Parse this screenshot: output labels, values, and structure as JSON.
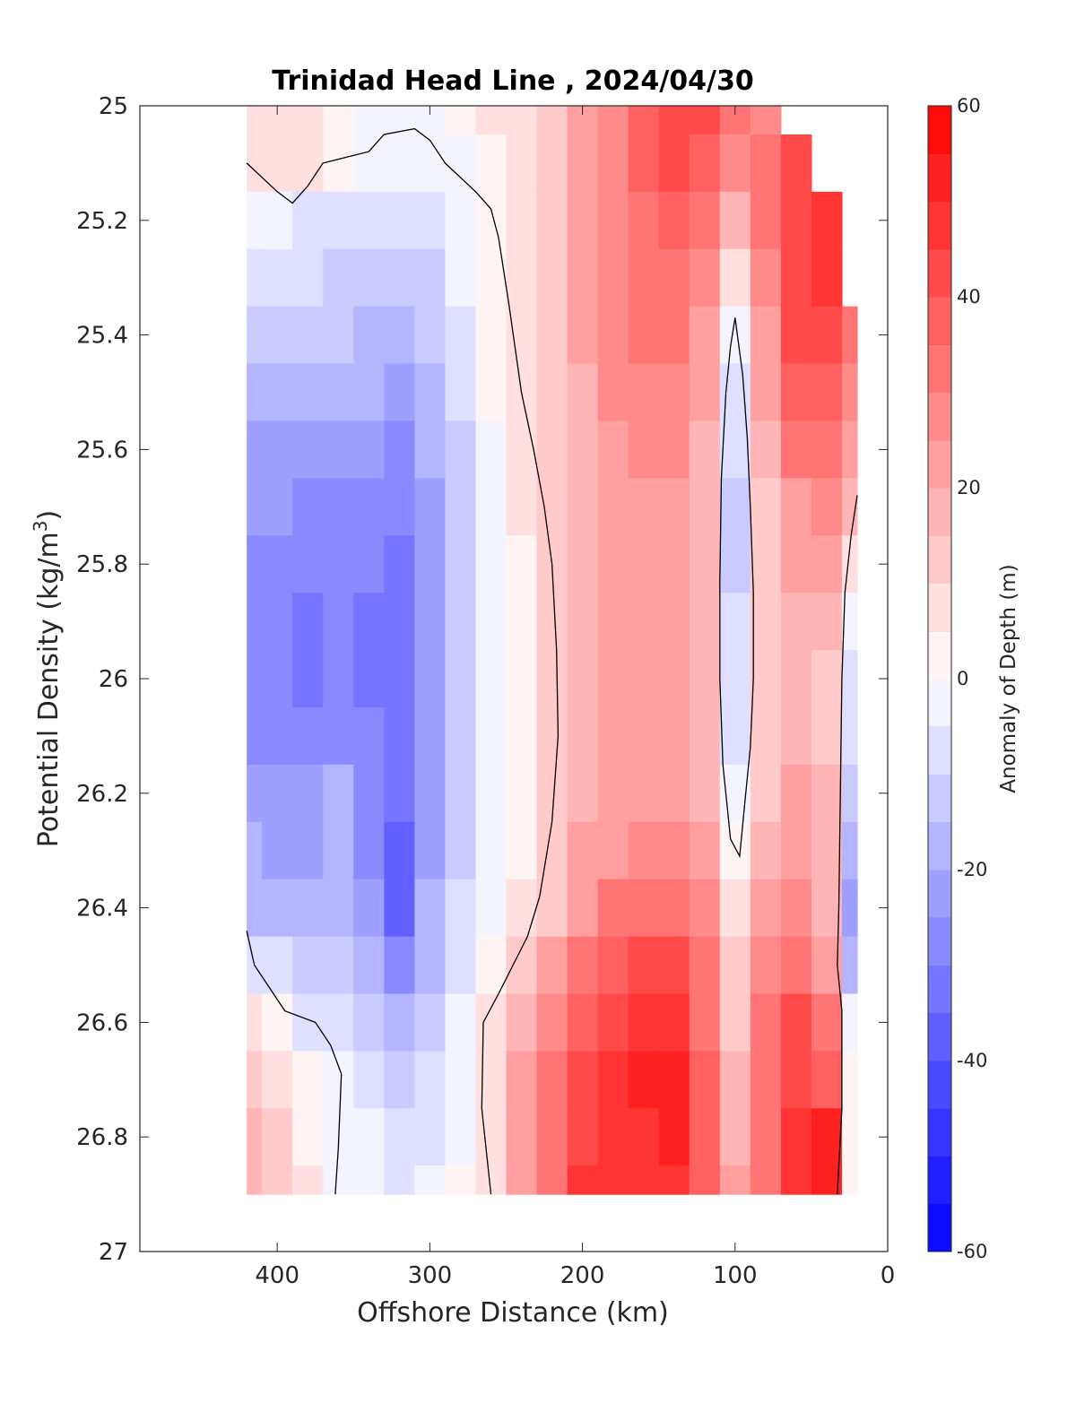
{
  "chart_data": {
    "type": "heatmap",
    "title": "Trinidad Head Line , 2024/04/30",
    "xlabel": "Offshore Distance (km)",
    "ylabel": "Potential Density (kg/m",
    "ylabel_sup": "3",
    "ylabel_close": ")",
    "xlim": [
      490,
      0
    ],
    "ylim": [
      25,
      27
    ],
    "x_reversed": true,
    "y_reversed": true,
    "xticks": [
      400,
      300,
      200,
      100,
      0
    ],
    "yticks": [
      25,
      25.2,
      25.4,
      25.6,
      25.8,
      26,
      26.2,
      26.4,
      26.6,
      26.8,
      27
    ],
    "grid": false,
    "colorbar": {
      "label": "Anomaly of Depth (m)",
      "min": -60,
      "max": 60,
      "step": 5,
      "ticks": [
        60,
        40,
        20,
        0,
        -20,
        -40,
        -60
      ],
      "low_color": "#0000ff",
      "mid_color": "#ffffff",
      "high_color": "#ff0000"
    },
    "x": [
      420,
      400,
      380,
      360,
      340,
      320,
      300,
      280,
      260,
      240,
      220,
      200,
      180,
      160,
      140,
      120,
      100,
      80,
      60,
      40,
      20
    ],
    "y": [
      25.0,
      25.1,
      25.2,
      25.3,
      25.4,
      25.5,
      25.6,
      25.7,
      25.8,
      25.9,
      26.0,
      26.1,
      26.2,
      26.3,
      26.4,
      26.5,
      26.6,
      26.7,
      26.8,
      26.9
    ],
    "z": [
      [
        8,
        8,
        5,
        2,
        -2,
        -3,
        -3,
        2,
        5,
        8,
        12,
        20,
        28,
        35,
        40,
        42,
        30,
        25,
        null,
        null,
        null
      ],
      [
        8,
        8,
        5,
        2,
        -3,
        -5,
        -5,
        -1,
        4,
        8,
        12,
        20,
        28,
        35,
        40,
        38,
        26,
        30,
        44,
        null,
        null
      ],
      [
        -3,
        -5,
        -6,
        -6,
        -8,
        -10,
        -9,
        -3,
        3,
        7,
        12,
        20,
        28,
        34,
        38,
        33,
        18,
        30,
        44,
        48,
        null
      ],
      [
        -6,
        -8,
        -9,
        -11,
        -12,
        -14,
        -12,
        -5,
        2,
        7,
        12,
        20,
        27,
        32,
        34,
        28,
        8,
        28,
        42,
        45,
        null
      ],
      [
        -12,
        -13,
        -14,
        -15,
        -16,
        -18,
        -15,
        -7,
        1,
        6,
        12,
        20,
        26,
        30,
        32,
        24,
        -2,
        24,
        40,
        42,
        32
      ],
      [
        -18,
        -18,
        -18,
        -19,
        -20,
        -22,
        -18,
        -9,
        0,
        6,
        12,
        19,
        25,
        28,
        29,
        21,
        -8,
        20,
        36,
        38,
        28
      ],
      [
        -22,
        -22,
        -22,
        -23,
        -24,
        -26,
        -20,
        -11,
        -1,
        5,
        12,
        18,
        24,
        26,
        26,
        19,
        -9,
        16,
        30,
        32,
        22
      ],
      [
        -24,
        -25,
        -26,
        -26,
        -28,
        -30,
        -22,
        -12,
        -2,
        5,
        12,
        18,
        23,
        24,
        24,
        17,
        -12,
        12,
        24,
        26,
        15
      ],
      [
        -26,
        -27,
        -28,
        -28,
        -30,
        -33,
        -24,
        -13,
        -2,
        4,
        12,
        17,
        22,
        23,
        22,
        16,
        -13,
        10,
        20,
        20,
        5
      ],
      [
        -27,
        -28,
        -32,
        -28,
        -31,
        -35,
        -25,
        -14,
        -3,
        4,
        11,
        17,
        21,
        22,
        21,
        15,
        -10,
        10,
        18,
        16,
        -5
      ],
      [
        -27,
        -28,
        -31,
        -28,
        -31,
        -34,
        -25,
        -14,
        -3,
        4,
        11,
        17,
        21,
        22,
        21,
        15,
        -8,
        10,
        18,
        14,
        -8
      ],
      [
        -26,
        -27,
        -28,
        -26,
        -30,
        -32,
        -24,
        -13,
        -3,
        4,
        11,
        17,
        21,
        22,
        22,
        16,
        -6,
        11,
        18,
        14,
        -10
      ],
      [
        -24,
        -25,
        -25,
        -18,
        -27,
        -33,
        -23,
        -12,
        -3,
        4,
        11,
        18,
        22,
        24,
        24,
        18,
        -2,
        12,
        20,
        15,
        -15
      ],
      [
        -20,
        -21,
        -22,
        -16,
        -26,
        -38,
        -22,
        -11,
        -3,
        4,
        12,
        20,
        24,
        28,
        28,
        22,
        4,
        15,
        22,
        16,
        -18
      ],
      [
        -16,
        -17,
        -20,
        -18,
        -25,
        -36,
        -20,
        -10,
        -3,
        5,
        14,
        24,
        30,
        34,
        34,
        26,
        8,
        20,
        26,
        18,
        -25
      ],
      [
        -6,
        -10,
        -14,
        -12,
        -20,
        -30,
        -17,
        -8,
        2,
        10,
        20,
        30,
        38,
        40,
        40,
        30,
        12,
        26,
        32,
        22,
        -18
      ],
      [
        6,
        2,
        -6,
        -8,
        -12,
        -20,
        -12,
        -4,
        6,
        16,
        26,
        38,
        44,
        48,
        46,
        34,
        14,
        30,
        40,
        30,
        -5
      ],
      [
        12,
        8,
        0,
        -5,
        -8,
        -14,
        -8,
        -2,
        8,
        20,
        32,
        42,
        46,
        50,
        50,
        36,
        16,
        32,
        44,
        38,
        0
      ],
      [
        18,
        14,
        4,
        -3,
        -5,
        -10,
        -6,
        -1,
        8,
        22,
        34,
        44,
        48,
        48,
        50,
        38,
        18,
        32,
        46,
        50,
        2
      ],
      [
        18,
        14,
        6,
        -2,
        -4,
        -8,
        -5,
        0,
        8,
        22,
        34,
        46,
        48,
        48,
        48,
        38,
        20,
        34,
        46,
        50,
        2
      ]
    ],
    "zero_contour_lines": [
      [
        [
          420,
          25.1
        ],
        [
          400,
          25.15
        ],
        [
          390,
          25.17
        ],
        [
          380,
          25.14
        ],
        [
          370,
          25.1
        ],
        [
          340,
          25.08
        ],
        [
          330,
          25.05
        ],
        [
          310,
          25.04
        ],
        [
          300,
          25.06
        ],
        [
          290,
          25.1
        ],
        [
          270,
          25.15
        ],
        [
          260,
          25.18
        ],
        [
          255,
          25.23
        ],
        [
          248,
          25.35
        ],
        [
          240,
          25.5
        ],
        [
          232,
          25.6
        ],
        [
          225,
          25.7
        ],
        [
          220,
          25.8
        ],
        [
          217,
          25.95
        ],
        [
          216,
          26.1
        ],
        [
          220,
          26.25
        ],
        [
          228,
          26.38
        ],
        [
          236,
          26.45
        ],
        [
          255,
          26.55
        ],
        [
          265,
          26.6
        ],
        [
          266,
          26.75
        ],
        [
          260,
          26.9
        ]
      ],
      [
        [
          420,
          26.44
        ],
        [
          415,
          26.5
        ],
        [
          395,
          26.58
        ],
        [
          375,
          26.6
        ],
        [
          365,
          26.64
        ],
        [
          358,
          26.69
        ],
        [
          360,
          26.82
        ],
        [
          362,
          26.9
        ]
      ],
      [
        [
          100,
          25.37
        ],
        [
          95,
          25.47
        ],
        [
          92,
          25.58
        ],
        [
          90,
          25.7
        ],
        [
          88,
          25.85
        ],
        [
          88,
          26.0
        ],
        [
          90,
          26.12
        ],
        [
          93,
          26.2
        ],
        [
          97,
          26.31
        ],
        [
          103,
          26.28
        ],
        [
          108,
          26.15
        ],
        [
          110,
          26.0
        ],
        [
          110,
          25.83
        ],
        [
          109,
          25.65
        ],
        [
          106,
          25.5
        ],
        [
          103,
          25.42
        ],
        [
          100,
          25.37
        ]
      ],
      [
        [
          20,
          25.68
        ],
        [
          24,
          25.75
        ],
        [
          28,
          25.85
        ],
        [
          30,
          26.0
        ],
        [
          31,
          26.2
        ],
        [
          32,
          26.4
        ],
        [
          33,
          26.5
        ],
        [
          30,
          26.58
        ],
        [
          30,
          26.75
        ],
        [
          33,
          26.9
        ]
      ]
    ]
  }
}
